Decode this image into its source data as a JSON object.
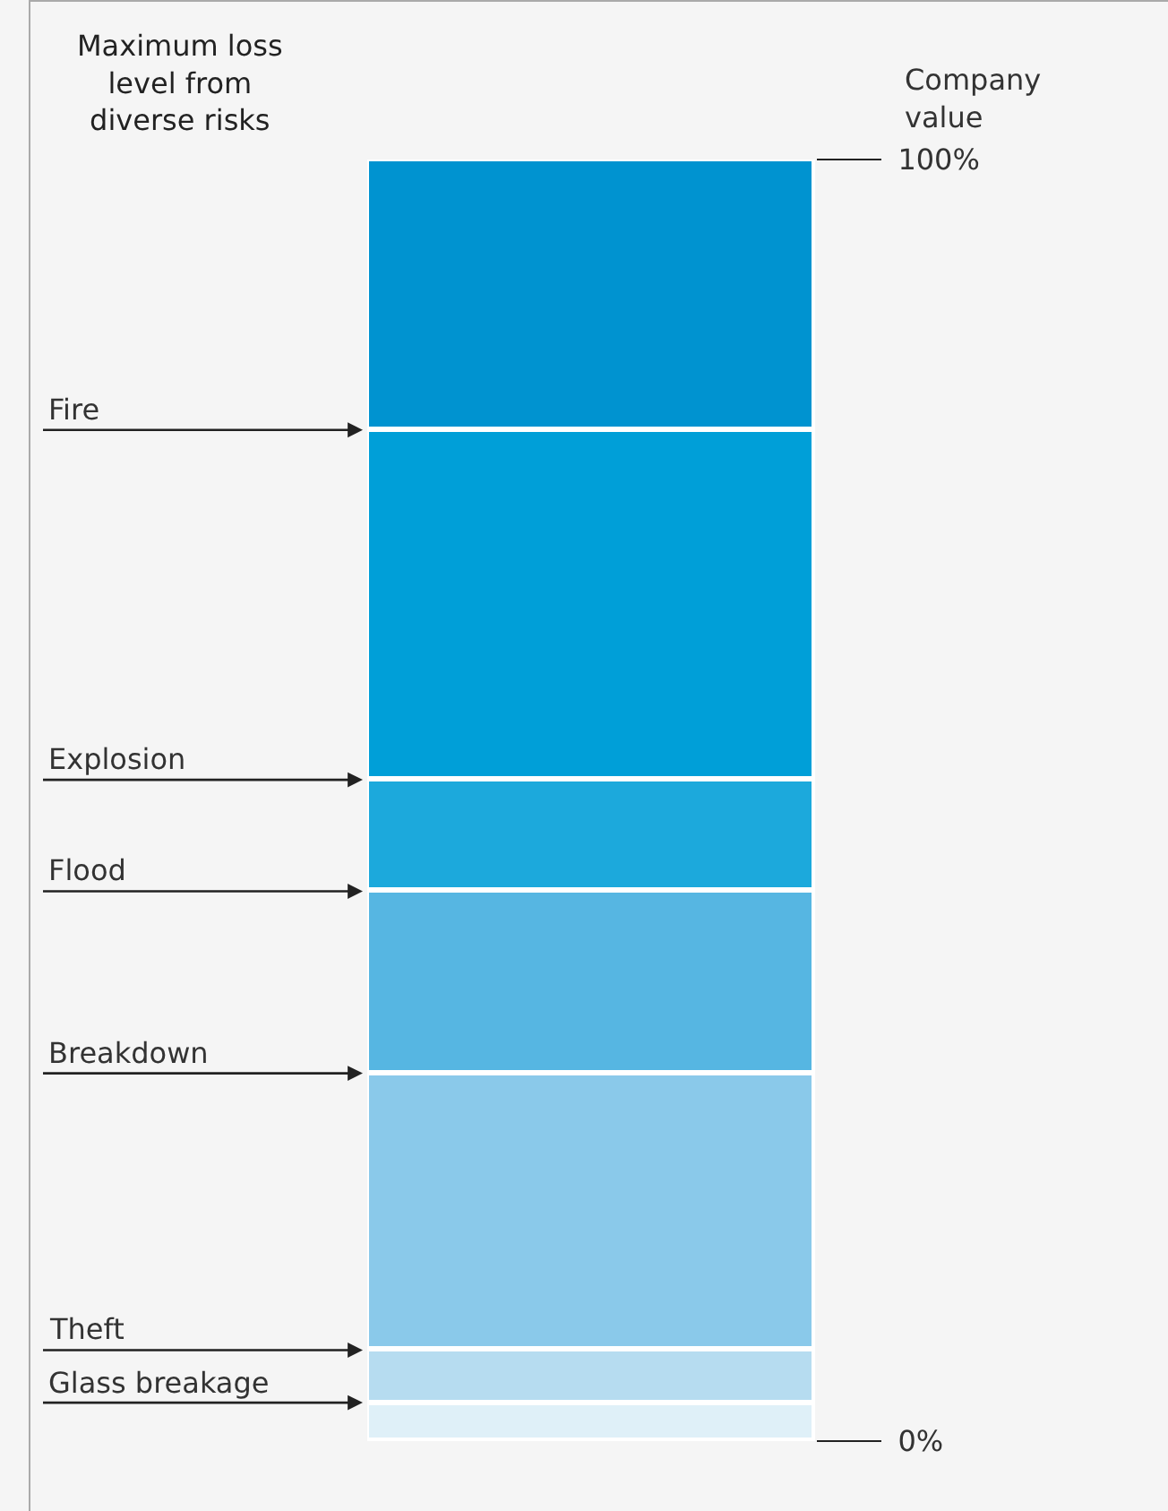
{
  "chart_data": {
    "type": "bar",
    "stacked": true,
    "title": "Maximum loss level from diverse risks",
    "categories": [
      null
    ],
    "series": [
      {
        "color": "#dff0f8",
        "values": [
          3.0
        ]
      },
      {
        "color": "#b6dcf0",
        "values": [
          4.1
        ]
      },
      {
        "color": "#8ac9ea",
        "values": [
          21.6
        ]
      },
      {
        "color": "#56b6e2",
        "values": [
          14.2
        ]
      },
      {
        "color": "#1ca9dc",
        "values": [
          8.7
        ]
      },
      {
        "color": "#009fd8",
        "values": [
          27.3
        ]
      },
      {
        "color": "#0093d0",
        "values": [
          21.1
        ]
      }
    ],
    "ylim": [
      0,
      100
    ],
    "yticks": [
      {
        "value": 0,
        "label": "0%"
      },
      {
        "value": 100,
        "label": "100%"
      }
    ],
    "annotations": [
      "Company value",
      "Fire",
      "Explosion",
      "Flood",
      "Breakdown",
      "Theft",
      "Glass breakage"
    ]
  }
}
